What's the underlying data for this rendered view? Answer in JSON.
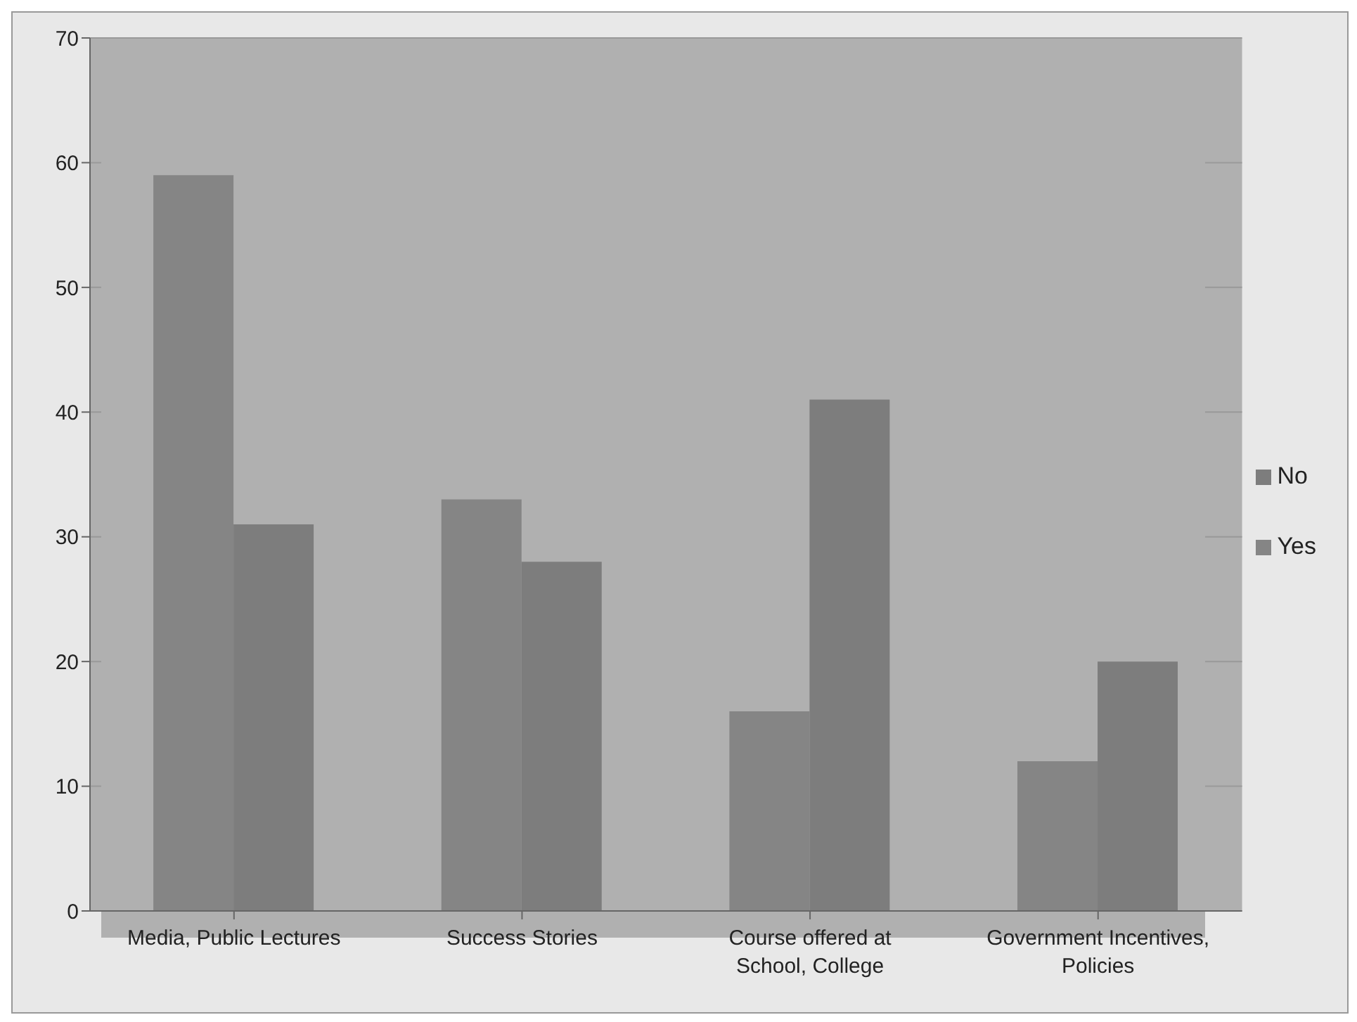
{
  "chart_data": {
    "type": "bar",
    "categories": [
      "Media, Public Lectures",
      "Success Stories",
      "Course offered at School, College",
      "Government Incentives, Policies"
    ],
    "series": [
      {
        "name": "Yes",
        "color": "#858585",
        "values": [
          59,
          33,
          16,
          12
        ]
      },
      {
        "name": "No",
        "color": "#7d7d7d",
        "values": [
          31,
          28,
          41,
          20
        ]
      }
    ],
    "ylim": [
      0,
      70
    ],
    "yticks": [
      0,
      10,
      20,
      30,
      40,
      50,
      60,
      70
    ],
    "grid": "y",
    "legend": "right"
  }
}
